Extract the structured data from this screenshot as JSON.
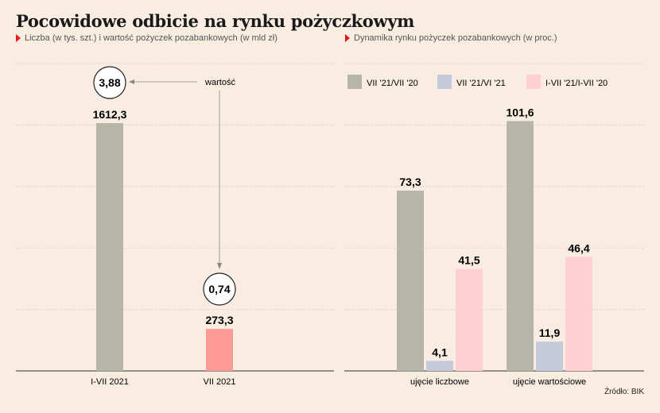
{
  "title": "Pocowidowe odbicie na rynku pożyczkowym",
  "source": "Źródło: BIK",
  "colors": {
    "background": "#f9ece1",
    "grid": "#d0c6bd",
    "gray_bar": "#b5b5aa",
    "red_bar": "#ff9a96",
    "blue_bar": "#c5cadb",
    "pink_bar": "#ffd0cf",
    "accent_red": "#e21a1a"
  },
  "chart_data": [
    {
      "type": "bar",
      "subtitle": "Liczba (w tys. szt.) i wartość pożyczek pozabankowych (w mld zł)",
      "categories": [
        "I-VII 2021",
        "VII 2021"
      ],
      "values": [
        1612.3,
        273.3
      ],
      "value_labels": [
        "1612,3",
        "273,3"
      ],
      "ylim": [
        0,
        2000
      ],
      "grid": true,
      "annotation": {
        "label": "wartość",
        "values": [
          3.88,
          0.74
        ],
        "value_labels": [
          "3,88",
          "0,74"
        ]
      }
    },
    {
      "type": "bar",
      "subtitle": "Dynamika rynku pożyczek pozabankowych (w proc.)",
      "categories": [
        "ujęcie liczbowe",
        "ujęcie wartościowe"
      ],
      "series": [
        {
          "name": "VII '21/VII '20",
          "values": [
            73.3,
            101.6
          ],
          "value_labels": [
            "73,3",
            "101,6"
          ]
        },
        {
          "name": "VII '21/VI '21",
          "values": [
            4.1,
            11.9
          ],
          "value_labels": [
            "4,1",
            "11,9"
          ]
        },
        {
          "name": "I-VII '21/I-VII '20",
          "values": [
            41.5,
            46.4
          ],
          "value_labels": [
            "41,5",
            "46,4"
          ]
        }
      ],
      "ylim": [
        0,
        125
      ],
      "grid": true,
      "legend": "top"
    }
  ]
}
